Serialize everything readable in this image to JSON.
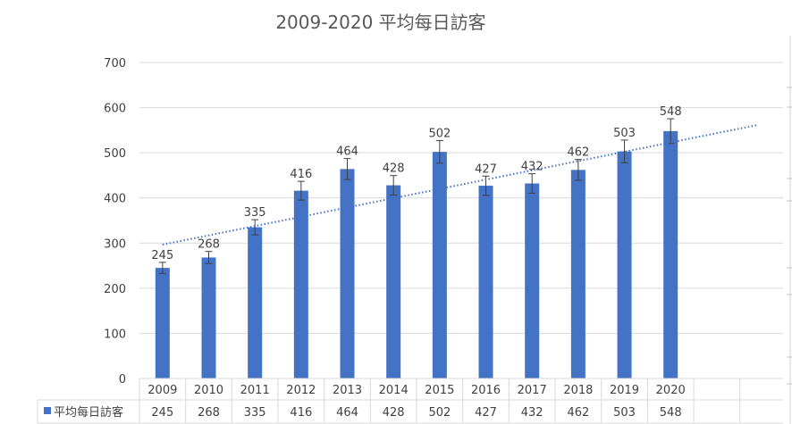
{
  "chart_data": {
    "type": "bar",
    "title": "2009-2020 平均每日訪客",
    "categories": [
      "2009",
      "2010",
      "2011",
      "2012",
      "2013",
      "2014",
      "2015",
      "2016",
      "2017",
      "2018",
      "2019",
      "2020"
    ],
    "series": [
      {
        "name": "平均每日訪客",
        "values": [
          245,
          268,
          335,
          416,
          464,
          428,
          502,
          427,
          432,
          462,
          503,
          548
        ],
        "color": "#4472C4",
        "error_bars": "±5%",
        "trendline": "linear",
        "trendline_color": "#4472C4"
      }
    ],
    "y_ticks": [
      "0",
      "100",
      "200",
      "300",
      "400",
      "500",
      "600",
      "700"
    ],
    "ylim": [
      0,
      700
    ],
    "grid": true,
    "data_labels": true,
    "data_table": true,
    "legend_placement": "data-table"
  }
}
